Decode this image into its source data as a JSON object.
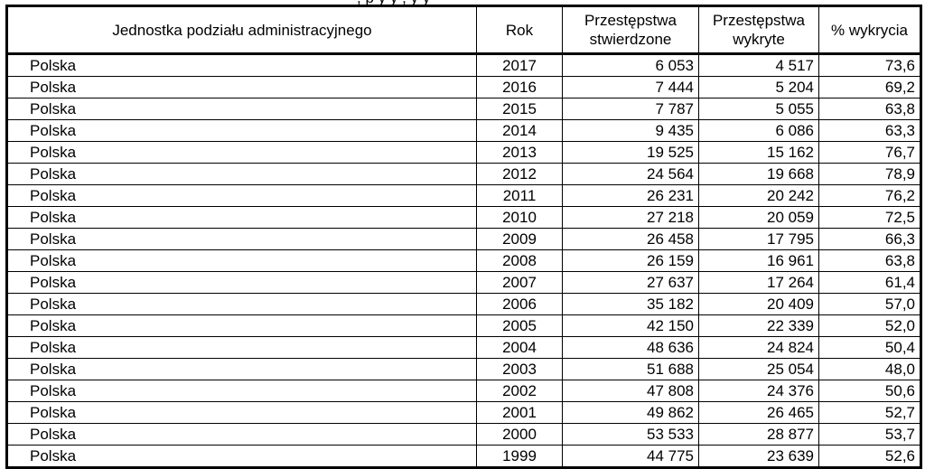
{
  "table": {
    "columns": [
      "Jednostka podziału administracyjnego",
      "Rok",
      "Przestępstwa stwierdzone",
      "Przestępstwa wykryte",
      "% wykrycia"
    ],
    "rows": [
      {
        "unit": "Polska",
        "year": "2017",
        "found": "6 053",
        "detected": "4 517",
        "rate": "73,6"
      },
      {
        "unit": "Polska",
        "year": "2016",
        "found": "7 444",
        "detected": "5 204",
        "rate": "69,2"
      },
      {
        "unit": "Polska",
        "year": "2015",
        "found": "7 787",
        "detected": "5 055",
        "rate": "63,8"
      },
      {
        "unit": "Polska",
        "year": "2014",
        "found": "9 435",
        "detected": "6 086",
        "rate": "63,3"
      },
      {
        "unit": "Polska",
        "year": "2013",
        "found": "19 525",
        "detected": "15 162",
        "rate": "76,7"
      },
      {
        "unit": "Polska",
        "year": "2012",
        "found": "24 564",
        "detected": "19 668",
        "rate": "78,9"
      },
      {
        "unit": "Polska",
        "year": "2011",
        "found": "26 231",
        "detected": "20 242",
        "rate": "76,2"
      },
      {
        "unit": "Polska",
        "year": "2010",
        "found": "27 218",
        "detected": "20 059",
        "rate": "72,5"
      },
      {
        "unit": "Polska",
        "year": "2009",
        "found": "26 458",
        "detected": "17 795",
        "rate": "66,3"
      },
      {
        "unit": "Polska",
        "year": "2008",
        "found": "26 159",
        "detected": "16 961",
        "rate": "63,8"
      },
      {
        "unit": "Polska",
        "year": "2007",
        "found": "27 637",
        "detected": "17 264",
        "rate": "61,4"
      },
      {
        "unit": "Polska",
        "year": "2006",
        "found": "35 182",
        "detected": "20 409",
        "rate": "57,0"
      },
      {
        "unit": "Polska",
        "year": "2005",
        "found": "42 150",
        "detected": "22 339",
        "rate": "52,0"
      },
      {
        "unit": "Polska",
        "year": "2004",
        "found": "48 636",
        "detected": "24 824",
        "rate": "50,4"
      },
      {
        "unit": "Polska",
        "year": "2003",
        "found": "51 688",
        "detected": "25 054",
        "rate": "48,0"
      },
      {
        "unit": "Polska",
        "year": "2002",
        "found": "47 808",
        "detected": "24 376",
        "rate": "50,6"
      },
      {
        "unit": "Polska",
        "year": "2001",
        "found": "49 862",
        "detected": "26 465",
        "rate": "52,7"
      },
      {
        "unit": "Polska",
        "year": "2000",
        "found": "53 533",
        "detected": "28 877",
        "rate": "53,7"
      },
      {
        "unit": "Polska",
        "year": "1999",
        "found": "44 775",
        "detected": "23 639",
        "rate": "52,6"
      }
    ]
  }
}
